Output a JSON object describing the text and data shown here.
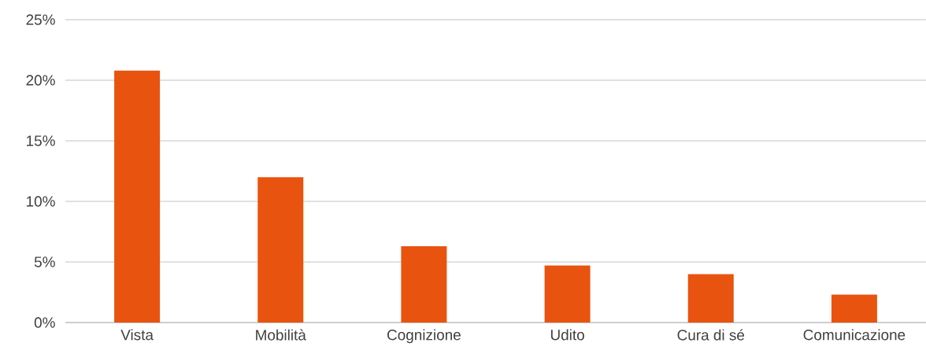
{
  "chart_data": {
    "type": "bar",
    "categories": [
      "Vista",
      "Mobilità",
      "Cognizione",
      "Udito",
      "Cura di sé",
      "Comunicazione"
    ],
    "values": [
      20.8,
      12.0,
      6.3,
      4.7,
      4.0,
      2.3
    ],
    "color": "#e8540f",
    "ylim": [
      0,
      25
    ],
    "yticks": [
      {
        "value": 0,
        "label": "0%"
      },
      {
        "value": 5,
        "label": "5%"
      },
      {
        "value": 10,
        "label": "10%"
      },
      {
        "value": 15,
        "label": "15%"
      },
      {
        "value": 20,
        "label": "20%"
      },
      {
        "value": 25,
        "label": "25%"
      }
    ],
    "grid": "y"
  }
}
